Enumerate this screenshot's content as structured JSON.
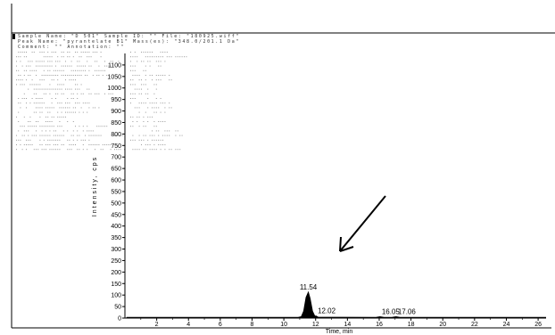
{
  "chart_data": {
    "type": "line",
    "title": "",
    "xlabel": "Time, min",
    "ylabel": "Intensity, cps",
    "xlim": [
      0,
      26.5
    ],
    "ylim": [
      0,
      1150
    ],
    "xticks": [
      2,
      4,
      6,
      8,
      10,
      12,
      14,
      16,
      18,
      20,
      22,
      24,
      26
    ],
    "yticks": [
      0,
      50,
      100,
      150,
      200,
      250,
      300,
      350,
      400,
      450,
      500,
      550,
      600,
      650,
      700,
      750,
      800,
      850,
      900,
      950,
      1000,
      1050,
      1100
    ],
    "grid": false,
    "series": [
      {
        "color": "#000000",
        "x": [
          0.1,
          10.9,
          11.1,
          11.25,
          11.4,
          11.54,
          11.65,
          11.8,
          11.95,
          12.02,
          12.15,
          15.8,
          16.05,
          16.3,
          16.8,
          17.06,
          17.3,
          26.5
        ],
        "y": [
          3,
          3,
          6,
          30,
          90,
          112,
          85,
          30,
          8,
          9,
          4,
          3,
          6,
          3,
          3,
          6,
          3,
          3
        ]
      }
    ],
    "peak_labels": [
      {
        "x": 11.54,
        "y": 112,
        "text": "11.54"
      },
      {
        "x": 12.02,
        "y": 9,
        "text": "12.02"
      },
      {
        "x": 16.05,
        "y": 6,
        "text": "16.05"
      },
      {
        "x": 17.06,
        "y": 6,
        "text": "17.06"
      }
    ]
  },
  "header": {
    "line1": "Sample Name: \"D 501\"  Sample ID: \"\"  File: \"180925.wiff\"",
    "line2": "Peak Name: \"pyrantelate B1\"  Mass(es): \"348.0/201.1 Da\"",
    "line3": "Comment: \"\"  Annotation: \"\""
  }
}
